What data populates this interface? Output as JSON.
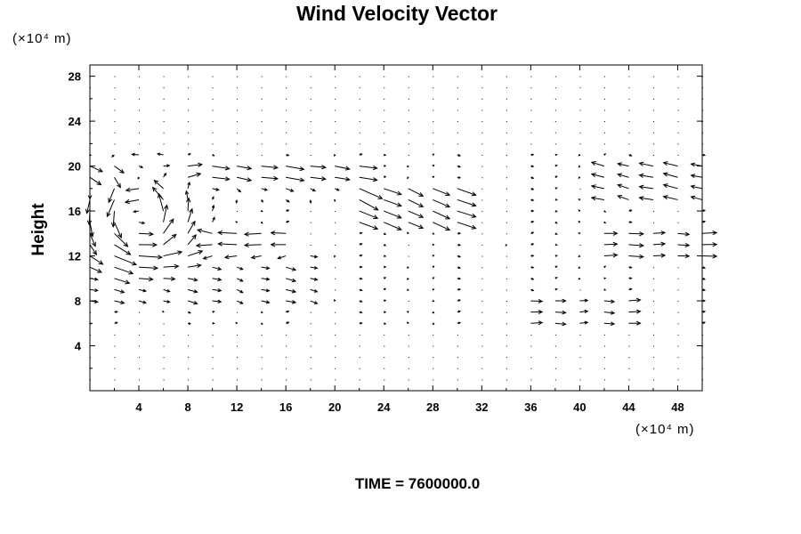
{
  "chart_data": {
    "type": "vector_field",
    "title": "Wind Velocity Vector",
    "ylabel": "Height",
    "x_units": "(×10⁴ m)",
    "y_units": "(×10⁴ m)",
    "time_label": "TIME = 7600000.0",
    "xlim": [
      0,
      50
    ],
    "ylim": [
      0,
      29
    ],
    "x_ticks": [
      4,
      8,
      12,
      16,
      20,
      24,
      28,
      32,
      36,
      40,
      44,
      48
    ],
    "y_ticks": [
      4,
      8,
      12,
      16,
      20,
      24,
      28
    ],
    "grid_spacing": {
      "x": 2,
      "y": 2
    },
    "features": [
      {
        "region": "upper jet",
        "y_range": [
          17,
          20
        ],
        "direction": "eastward",
        "note": "strong arrows near y=20, x=4-22"
      },
      {
        "region": "vortex",
        "x_range": [
          0,
          7
        ],
        "y_range": [
          12,
          20
        ],
        "note": "large rotating arrows"
      },
      {
        "region": "mid-level band",
        "y_range": [
          11,
          14
        ],
        "direction": "westward near x=10-16"
      },
      {
        "region": "lower layer",
        "y_range": [
          0,
          10
        ],
        "note": "weak, mostly near-zero vectors"
      }
    ]
  }
}
